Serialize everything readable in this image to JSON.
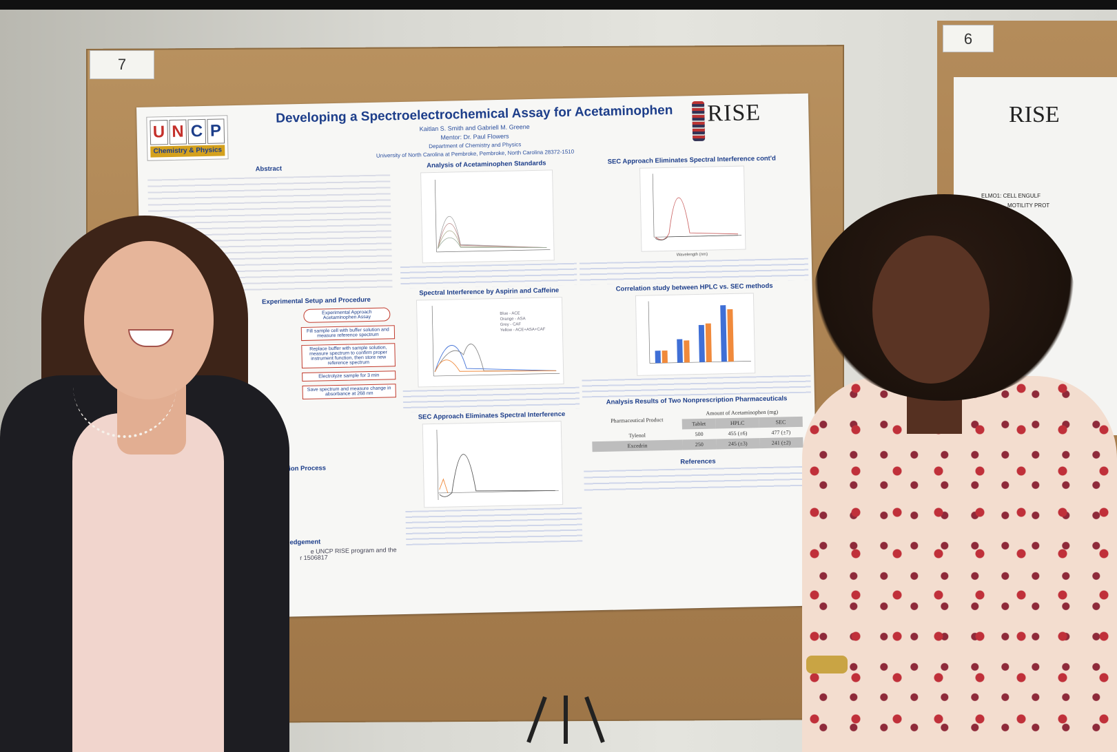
{
  "scene": {
    "left_board_number": "7",
    "right_board_number": "6"
  },
  "poster": {
    "logo": {
      "letters": [
        "U",
        "N",
        "C",
        "P"
      ],
      "band": "Chemistry & Physics"
    },
    "rise_logo": "RISE",
    "title": "Developing a Spectroelectrochemical Assay for Acetaminophen",
    "authors": "Kaitlan S. Smith and Gabriell M. Greene",
    "mentor": "Mentor: Dr. Paul Flowers",
    "department": "Department of Chemistry and Physics",
    "university": "University of North Carolina at Pembroke, Pembroke, North Carolina 28372-1510",
    "sections": {
      "abstract": "Abstract",
      "setup": "Experimental Setup and Procedure",
      "process": "Oxidation Process",
      "acknowledgement": "Acknowledgement",
      "standards": "Analysis of Acetaminophen Standards",
      "interference": "Spectral Interference by Aspirin and Caffeine",
      "sec_eliminates": "SEC Approach Eliminates Spectral Interference",
      "sec_cont": "SEC Approach Eliminates Spectral Interference cont'd",
      "correlation": "Correlation study between HPLC vs. SEC methods",
      "results": "Analysis Results of Two Nonprescription Pharmaceuticals",
      "references": "References"
    },
    "flow": {
      "title_box": "Experimental Approach Acetaminophen Assay",
      "steps": [
        "Fill sample cell with buffer solution and measure reference spectrum",
        "Replace buffer with sample solution, measure spectrum to confirm proper instrument function, then store new reference spectrum",
        "Electrolyze sample for 3 min",
        "Save spectrum and measure change in absorbance at 268 nm"
      ]
    },
    "results_table": {
      "col_product": "Pharmaceutical Product",
      "col_group": "Amount of Acetaminophen (mg)",
      "cols": [
        "Tablet",
        "HPLC",
        "SEC"
      ],
      "rows": [
        {
          "name": "Tylenol",
          "tablet": "500",
          "hplc": "455 (±6)",
          "sec": "477 (±7)"
        },
        {
          "name": "Excedrin",
          "tablet": "250",
          "hplc": "245 (±3)",
          "sec": "241 (±2)"
        }
      ]
    },
    "interference_legend": [
      "Blue - ACE",
      "Orange - ASA",
      "Grey - CAF",
      "Yellow - ACE+ASA+CAF"
    ],
    "axis_wavelength": "Wavelength (nm)",
    "ack_fragment": "e UNCP RISE program and the",
    "ack_fragment2": "r 1506817"
  },
  "colors": {
    "poster_title": "#1d3e8a",
    "accent_red": "#c0392b",
    "bar_blue": "#3f6fd6",
    "bar_orange": "#f08a3c"
  },
  "right_poster": {
    "rise": "RISE",
    "title_fragment": "ELMO1: CELL ENGULF",
    "title_fragment2": "MOTILITY PROT"
  }
}
